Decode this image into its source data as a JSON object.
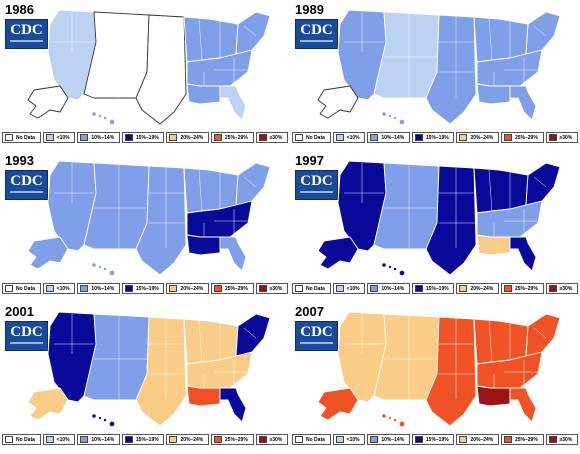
{
  "legend": [
    {
      "label": "No Data",
      "color": "#ffffff"
    },
    {
      "label": "<10%",
      "color": "#bcd2f2"
    },
    {
      "label": "10%–14%",
      "color": "#7f9fe8"
    },
    {
      "label": "15%–19%",
      "color": "#0a0a9a"
    },
    {
      "label": "20%–24%",
      "color": "#f9cc88"
    },
    {
      "label": "25%–29%",
      "color": "#ef5325"
    },
    {
      "label": "≥30%",
      "color": "#9b1414"
    }
  ],
  "logo_text": "CDC",
  "panels": [
    {
      "year": "1986",
      "region_level": {
        "west": 1,
        "mountain": 0,
        "plains": 0,
        "midwest": 2,
        "south": 2,
        "deep_south": 2,
        "northeast": 2,
        "florida": 1,
        "alaska": 0,
        "hawaii": 2
      }
    },
    {
      "year": "1989",
      "region_level": {
        "west": 2,
        "mountain": 1,
        "plains": 2,
        "midwest": 2,
        "south": 2,
        "deep_south": 2,
        "northeast": 2,
        "florida": 2,
        "alaska": 0,
        "hawaii": 2
      }
    },
    {
      "year": "1993",
      "region_level": {
        "west": 2,
        "mountain": 2,
        "plains": 2,
        "midwest": 2,
        "south": 3,
        "deep_south": 3,
        "northeast": 2,
        "florida": 2,
        "alaska": 2,
        "hawaii": 2
      }
    },
    {
      "year": "1997",
      "region_level": {
        "west": 3,
        "mountain": 2,
        "plains": 3,
        "midwest": 3,
        "south": 2,
        "deep_south": 4,
        "northeast": 3,
        "florida": 3,
        "alaska": 3,
        "hawaii": 3
      }
    },
    {
      "year": "2001",
      "region_level": {
        "west": 3,
        "mountain": 2,
        "plains": 4,
        "midwest": 4,
        "south": 4,
        "deep_south": 5,
        "northeast": 3,
        "florida": 3,
        "alaska": 4,
        "hawaii": 3
      }
    },
    {
      "year": "2007",
      "region_level": {
        "west": 4,
        "mountain": 4,
        "plains": 5,
        "midwest": 5,
        "south": 5,
        "deep_south": 6,
        "northeast": 5,
        "florida": 5,
        "alaska": 5,
        "hawaii": 5
      }
    }
  ]
}
